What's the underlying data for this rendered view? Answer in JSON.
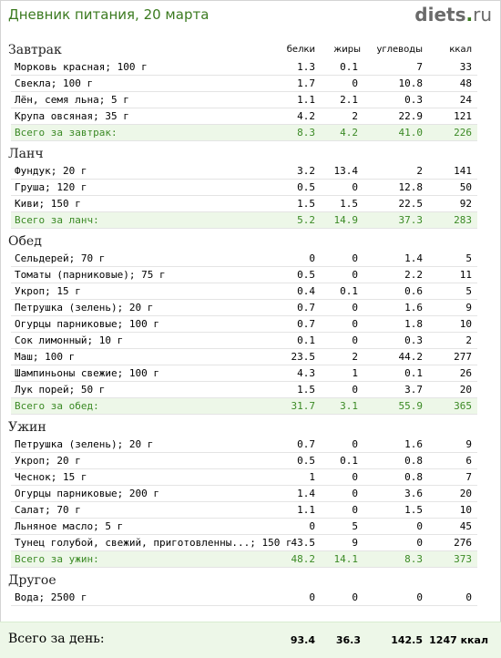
{
  "header": {
    "title": "Дневник питания, 20 марта",
    "logo_main": "diets",
    "logo_dot": ".",
    "logo_tld": "ru"
  },
  "columns": {
    "protein": "белки",
    "fat": "жиры",
    "carbs": "углеводы",
    "kcal": "ккал"
  },
  "sections": [
    {
      "title": "Завтрак",
      "items": [
        {
          "name": "Морковь красная; 100 г",
          "protein": "1.3",
          "fat": "0.1",
          "carbs": "7",
          "kcal": "33"
        },
        {
          "name": "Свекла; 100 г",
          "protein": "1.7",
          "fat": "0",
          "carbs": "10.8",
          "kcal": "48"
        },
        {
          "name": "Лён, семя льна; 5 г",
          "protein": "1.1",
          "fat": "2.1",
          "carbs": "0.3",
          "kcal": "24"
        },
        {
          "name": "Крупа овсяная; 35 г",
          "protein": "4.2",
          "fat": "2",
          "carbs": "22.9",
          "kcal": "121"
        }
      ],
      "total": {
        "name": "Всего за завтрак:",
        "protein": "8.3",
        "fat": "4.2",
        "carbs": "41.0",
        "kcal": "226"
      }
    },
    {
      "title": "Ланч",
      "items": [
        {
          "name": "Фундук; 20 г",
          "protein": "3.2",
          "fat": "13.4",
          "carbs": "2",
          "kcal": "141"
        },
        {
          "name": "Груша; 120 г",
          "protein": "0.5",
          "fat": "0",
          "carbs": "12.8",
          "kcal": "50"
        },
        {
          "name": "Киви; 150 г",
          "protein": "1.5",
          "fat": "1.5",
          "carbs": "22.5",
          "kcal": "92"
        }
      ],
      "total": {
        "name": "Всего за ланч:",
        "protein": "5.2",
        "fat": "14.9",
        "carbs": "37.3",
        "kcal": "283"
      }
    },
    {
      "title": "Обед",
      "items": [
        {
          "name": "Сельдерей; 70 г",
          "protein": "0",
          "fat": "0",
          "carbs": "1.4",
          "kcal": "5"
        },
        {
          "name": "Томаты (парниковые); 75 г",
          "protein": "0.5",
          "fat": "0",
          "carbs": "2.2",
          "kcal": "11"
        },
        {
          "name": "Укроп; 15 г",
          "protein": "0.4",
          "fat": "0.1",
          "carbs": "0.6",
          "kcal": "5"
        },
        {
          "name": "Петрушка (зелень); 20 г",
          "protein": "0.7",
          "fat": "0",
          "carbs": "1.6",
          "kcal": "9"
        },
        {
          "name": "Огурцы парниковые; 100 г",
          "protein": "0.7",
          "fat": "0",
          "carbs": "1.8",
          "kcal": "10"
        },
        {
          "name": "Сок лимонный; 10 г",
          "protein": "0.1",
          "fat": "0",
          "carbs": "0.3",
          "kcal": "2"
        },
        {
          "name": "Маш; 100 г",
          "protein": "23.5",
          "fat": "2",
          "carbs": "44.2",
          "kcal": "277"
        },
        {
          "name": "Шампиньоны свежие; 100 г",
          "protein": "4.3",
          "fat": "1",
          "carbs": "0.1",
          "kcal": "26"
        },
        {
          "name": "Лук порей; 50 г",
          "protein": "1.5",
          "fat": "0",
          "carbs": "3.7",
          "kcal": "20"
        }
      ],
      "total": {
        "name": "Всего за обед:",
        "protein": "31.7",
        "fat": "3.1",
        "carbs": "55.9",
        "kcal": "365"
      }
    },
    {
      "title": "Ужин",
      "items": [
        {
          "name": "Петрушка (зелень); 20 г",
          "protein": "0.7",
          "fat": "0",
          "carbs": "1.6",
          "kcal": "9"
        },
        {
          "name": "Укроп; 20 г",
          "protein": "0.5",
          "fat": "0.1",
          "carbs": "0.8",
          "kcal": "6"
        },
        {
          "name": "Чеснок; 15 г",
          "protein": "1",
          "fat": "0",
          "carbs": "0.8",
          "kcal": "7"
        },
        {
          "name": "Огурцы парниковые; 200 г",
          "protein": "1.4",
          "fat": "0",
          "carbs": "3.6",
          "kcal": "20"
        },
        {
          "name": "Салат; 70 г",
          "protein": "1.1",
          "fat": "0",
          "carbs": "1.5",
          "kcal": "10"
        },
        {
          "name": "Льняное масло; 5 г",
          "protein": "0",
          "fat": "5",
          "carbs": "0",
          "kcal": "45"
        },
        {
          "name": "Тунец голубой, свежий, приготовленны...; 150 г",
          "protein": "43.5",
          "fat": "9",
          "carbs": "0",
          "kcal": "276"
        }
      ],
      "total": {
        "name": "Всего за ужин:",
        "protein": "48.2",
        "fat": "14.1",
        "carbs": "8.3",
        "kcal": "373"
      }
    },
    {
      "title": "Другое",
      "items": [
        {
          "name": "Вода; 2500 г",
          "protein": "0",
          "fat": "0",
          "carbs": "0",
          "kcal": "0"
        }
      ]
    }
  ],
  "day_total": {
    "label": "Всего за день:",
    "protein": "93.4",
    "fat": "36.3",
    "carbs": "142.5",
    "kcal": "1247 ккал"
  }
}
